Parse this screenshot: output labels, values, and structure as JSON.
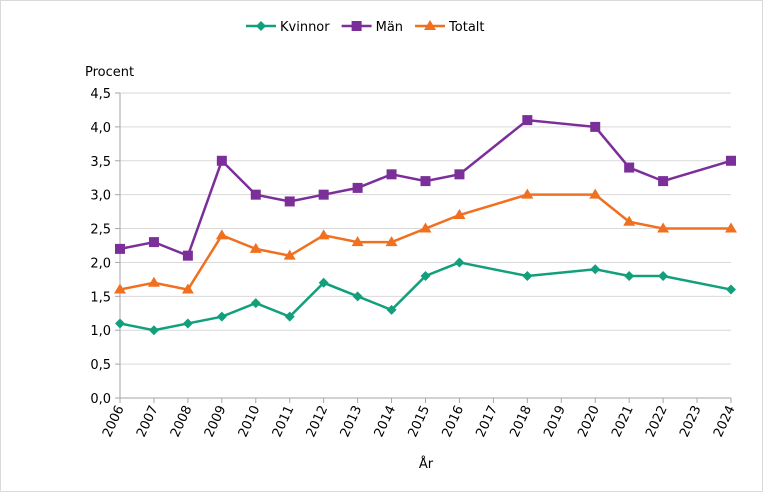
{
  "chart_data": {
    "type": "line",
    "title": "",
    "ylabel": "Procent",
    "xlabel": "År",
    "ylim": [
      0,
      4.5
    ],
    "ytick_step": 0.5,
    "grid": "horizontal",
    "legend_position": "top",
    "categories": [
      "2006",
      "2007",
      "2008",
      "2009",
      "2010",
      "2011",
      "2012",
      "2013",
      "2014",
      "2015",
      "2016",
      "2017",
      "2018",
      "2019",
      "2020",
      "2021",
      "2022",
      "2023",
      "2024"
    ],
    "series": [
      {
        "name": "Kvinnor",
        "color": "#12a07c",
        "marker": "diamond",
        "values": [
          1.1,
          1.0,
          1.1,
          1.2,
          1.4,
          1.2,
          1.7,
          1.5,
          1.3,
          1.8,
          2.0,
          null,
          1.8,
          null,
          1.9,
          1.8,
          1.8,
          null,
          1.6
        ]
      },
      {
        "name": "Män",
        "color": "#7b2f98",
        "marker": "square",
        "values": [
          2.2,
          2.3,
          2.1,
          3.5,
          3.0,
          2.9,
          3.0,
          3.1,
          3.3,
          3.2,
          3.3,
          null,
          4.1,
          null,
          4.0,
          3.4,
          3.2,
          null,
          3.5
        ]
      },
      {
        "name": "Totalt",
        "color": "#f07020",
        "marker": "triangle",
        "values": [
          1.6,
          1.7,
          1.6,
          2.4,
          2.2,
          2.1,
          2.4,
          2.3,
          2.3,
          2.5,
          2.7,
          null,
          3.0,
          null,
          3.0,
          2.6,
          2.5,
          null,
          2.5
        ]
      }
    ]
  }
}
